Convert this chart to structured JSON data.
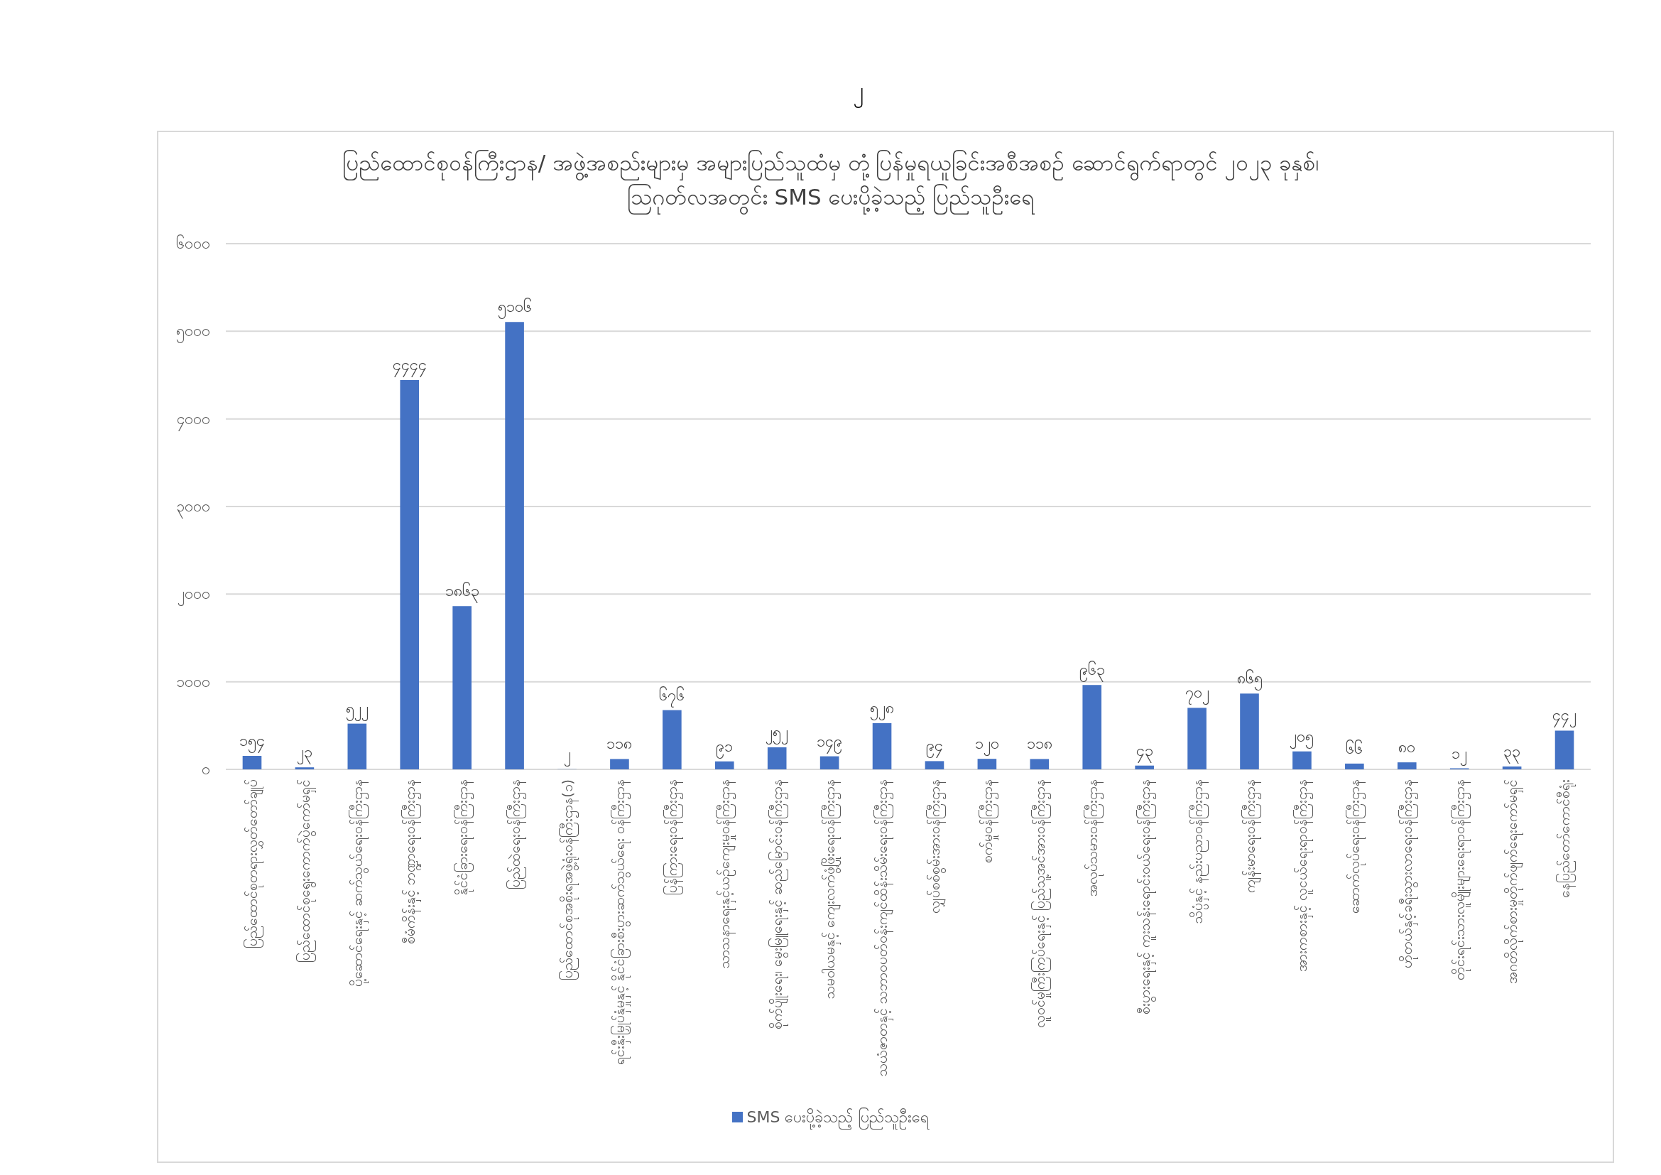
{
  "chart_data": {
    "type": "bar",
    "title": "ပြည်ထောင်စုဝန်ကြီးဌာန/ အဖွဲ့အစည်းများမှ အများပြည်သူထံမှ တုံ့ပြန်မှုရယူခြင်းအစီအစဉ် ဆောင်ရွက်ရာတွင် ၂၀၂၃ ခုနှစ်၊ ဩဂုတ်လအတွင်း SMS ပေးပို့ခဲ့သည့် ပြည်သူဦးရေ",
    "annotations": [
      "၂"
    ],
    "categories": [
      "ပြည်ထောင်စုတရားလွှတ်တော်ချုပ်",
      "ပြည်ထောင်စုရွေးကောက်ပွဲကော်မရှင်",
      "ပို့ဆောင်ရေးနှင့် ဆက်သွယ်ရေးဝန်ကြီးဌာန",
      "စီမံကိန်းနှင့် ဘဏ္ဍာရေးဝန်ကြီးဌာန",
      "နိုင်ငံခြားရေးဝန်ကြီးဌာန",
      "ပြည်ထဲရေးဝန်ကြီးဌာန",
      "ပြည်ထောင်စုအစိုးရအဖွဲ့ရုံးဝန်ကြီးဌာန(၁)",
      "ရင်းနှီးမြှုပ်နှံမှုနှင့် နိုင်ငံခြားစီးပွားဆက်သွယ်ရေး ဝန်ကြီးဌာန",
      "ပြန်ကြားရေးဝန်ကြီးဌာန",
      "သာသနာရေးနှင့်ယဉ်ကျေးမှုဝန်ကြီးဌာန",
      "စိုက်ပျိုးရေး၊ မွေးမြူရေးနှင့် ဆည်မြောင်းဝန်ကြီးဌာန",
      "သမဝါယမနှင့် ကျေးလက်ဖွံ့ဖြိုးရေးဝန်ကြီးဌာန",
      "သယံဇာတနှင့် သဘာဝပတ်ဝန်းကျင်ထိန်းသိမ်းရေးဝန်ကြီးဌာန",
      "လျှပ်စစ်စွမ်းအားဝန်ကြီးဌာန",
      "စက်မှုဝန်ကြီးဌာန",
      "လူဝင်မှုကြီးကြပ်ရေးနှင့် ပြည်သူ့အင်အားဝန်ကြီးဌာန",
      "အလုပ်သမားဝန်ကြီးဌာန",
      "စီးပွားရေးနှင့် ကူးသန်းရောင်းဝယ်ရေးဝန်ကြီးဌာန",
      "သိပ္ပံနှင့် နည်းပညာဝန်ကြီးဌာန",
      "ကျန်းမာရေးဝန်ကြီးဌာန",
      "အားကစားနှင့် လူငယ်ရေးရာဝန်ကြီးဌာန",
      "ဆောက်လုပ်ရေးဝန်ကြီးဌာန",
      "ဟိုတယ်နှင့်ခရီးသွားလာရေးဝန်ကြီးဌာန",
      "တိုင်းရင်းသားလူမျိုးများရေးရာဝန်ကြီးဌာန",
      "အဂတိလိုက်စားမှုတိုက်ဖျက်ရေးကော်မရှင်",
      "နေပြည်တော်ကောင်စီရုံး"
    ],
    "series": [
      {
        "name": "SMS ပေးပို့ခဲ့သည့် ပြည်သူဦးရေ",
        "color": "#4472c4",
        "values": [
          154,
          23,
          522,
          4444,
          1863,
          5106,
          2,
          118,
          676,
          91,
          252,
          149,
          528,
          94,
          120,
          118,
          963,
          43,
          702,
          865,
          205,
          66,
          80,
          12,
          33,
          442
        ],
        "value_labels": [
          "၁၅၄",
          "၂၃",
          "၅၂၂",
          "၄၄၄၄",
          "၁၈၆၃",
          "၅၁၀၆",
          "၂",
          "၁၁၈",
          "၆၇၆",
          "၉၁",
          "၂၅၂",
          "၁၄၉",
          "၅၂၈",
          "၉၄",
          "၁၂၀",
          "၁၁၈",
          "၉၆၃",
          "၄၃",
          "၇၀၂",
          "၈၆၅",
          "၂၀၅",
          "၆၆",
          "၈၀",
          "၁၂",
          "၃၃",
          "၄၄၂"
        ]
      }
    ],
    "ylim": [
      0,
      6000
    ],
    "yticks": [
      {
        "value": 0,
        "label": "၀"
      },
      {
        "value": 1000,
        "label": "၁၀၀၀"
      },
      {
        "value": 2000,
        "label": "၂၀၀၀"
      },
      {
        "value": 3000,
        "label": "၃၀၀၀"
      },
      {
        "value": 4000,
        "label": "၄၀၀၀"
      },
      {
        "value": 5000,
        "label": "၅၀၀၀"
      },
      {
        "value": 6000,
        "label": "၆၀၀၀"
      }
    ],
    "grid": "y",
    "legend": "bottom"
  }
}
